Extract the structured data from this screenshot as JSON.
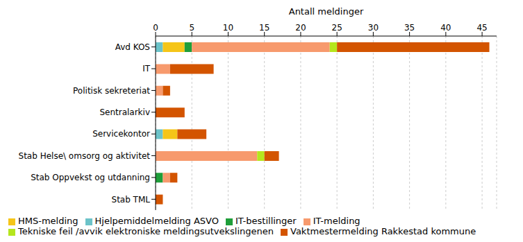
{
  "chart_data": {
    "type": "bar",
    "orientation": "horizontal",
    "stacked": true,
    "grid": true,
    "legend": "bottom-left",
    "x_label": "Antall meldinger",
    "categories": [
      "Avd KOS",
      "IT",
      "Politisk sekreteriat",
      "Sentralarkiv",
      "Servicekontor",
      "Stab Helse\\  omsorg og aktivitet",
      "Stab Oppvekst og utdanning",
      "Stab TML"
    ],
    "series": [
      {
        "name": "Hjelpemiddelmelding ASVO",
        "color": "#6cc3c9",
        "values": [
          1,
          0,
          0,
          0,
          1,
          0,
          0,
          0
        ]
      },
      {
        "name": "HMS-melding",
        "color": "#f5c518",
        "values": [
          3,
          0,
          0,
          0,
          2,
          0,
          0,
          0
        ]
      },
      {
        "name": "IT-bestillinger",
        "color": "#1f9e3a",
        "values": [
          1,
          0,
          0,
          0,
          0,
          0,
          1,
          0
        ]
      },
      {
        "name": "IT-melding",
        "color": "#f79a6d",
        "values": [
          19,
          2,
          1,
          0,
          0,
          14,
          1,
          0
        ]
      },
      {
        "name": "Tekniske feil /avvik elektroniske meldingsutvekslingenen",
        "color": "#b5e61d",
        "values": [
          1,
          0,
          0,
          0,
          0,
          1,
          0,
          0
        ]
      },
      {
        "name": "Vaktmestermelding Rakkestad kommune",
        "color": "#d35400",
        "values": [
          21,
          6,
          1,
          4,
          4,
          2,
          1,
          1
        ]
      }
    ],
    "xlim": [
      0,
      47
    ],
    "xticks": [
      0,
      5,
      10,
      15,
      20,
      25,
      30,
      35,
      40,
      45
    ]
  }
}
